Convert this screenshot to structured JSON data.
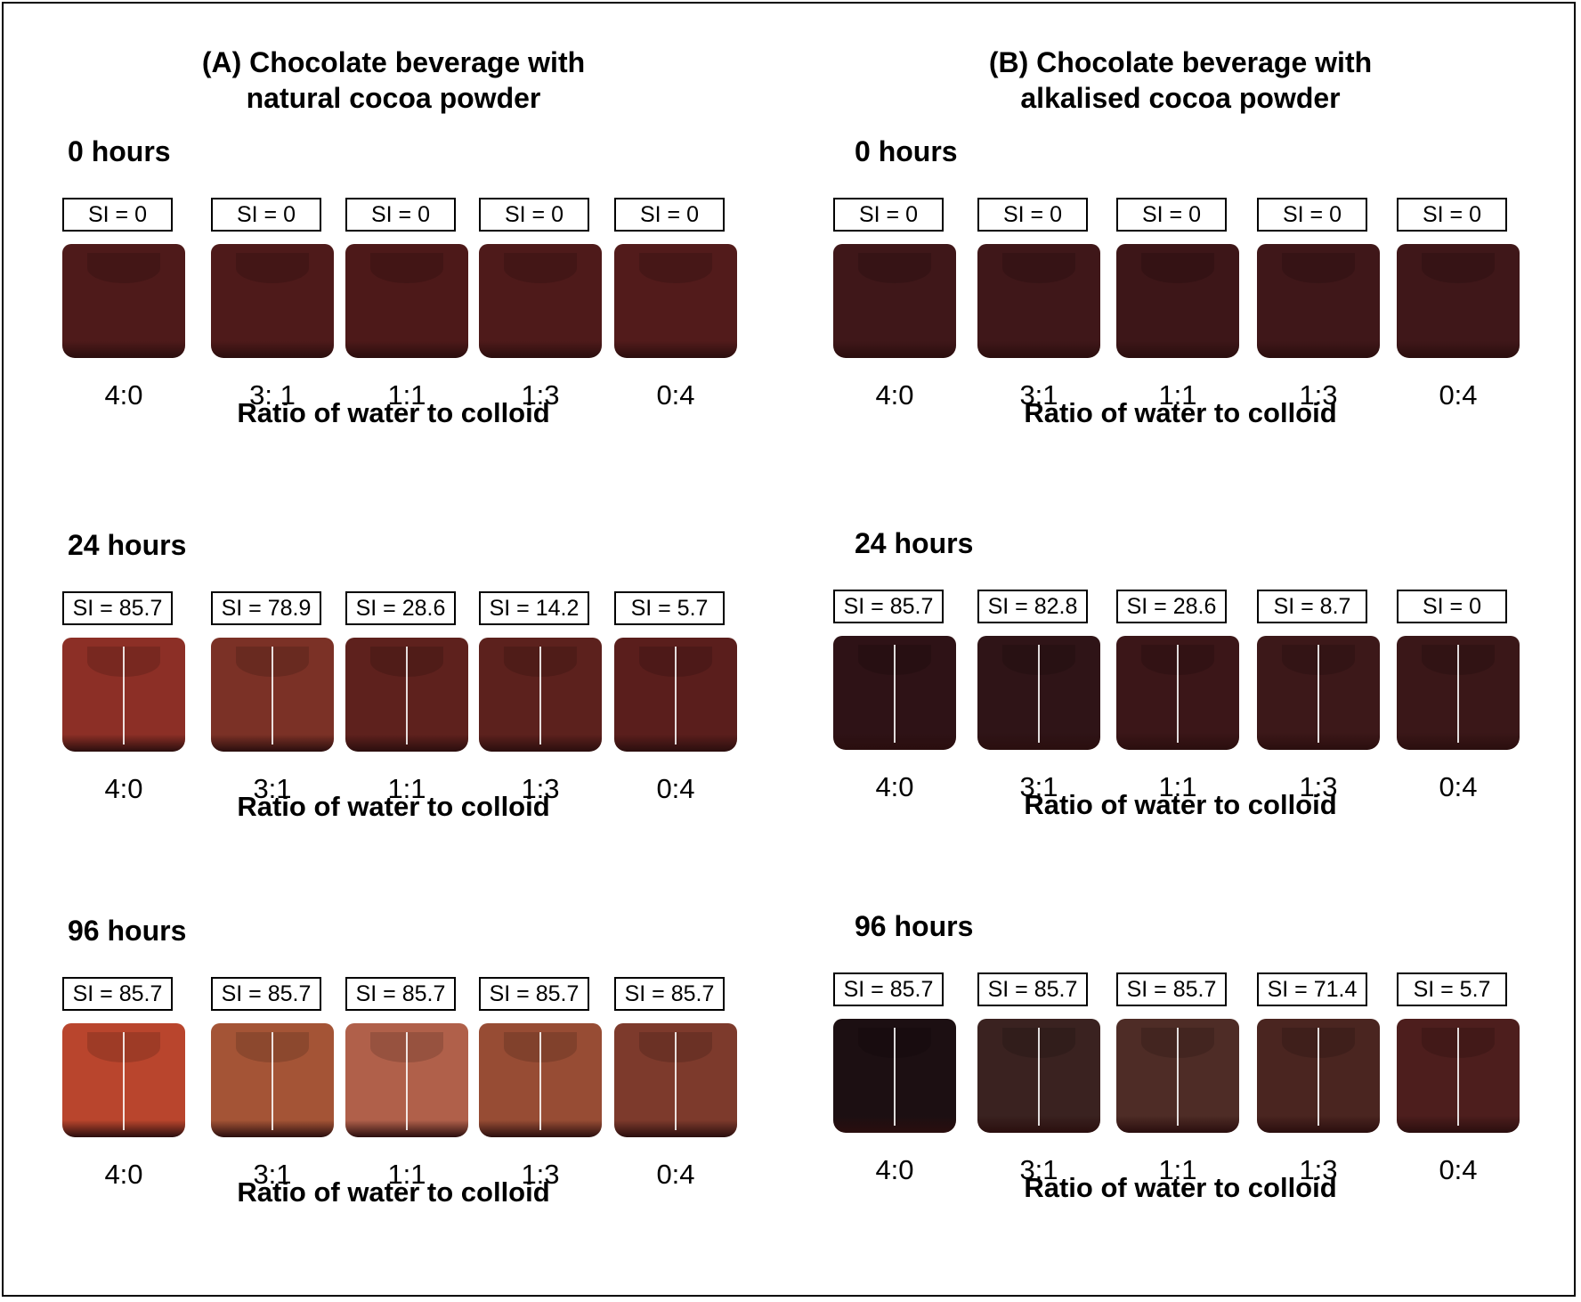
{
  "panels": [
    {
      "title_line1": "(A) Chocolate beverage with",
      "title_line2": "natural cocoa powder",
      "times": [
        {
          "label": "0 hours",
          "axis_label": "Ratio of water to colloid",
          "samples": [
            {
              "si": "SI = 0",
              "ratio": "4:0",
              "color": "#4e1a1a"
            },
            {
              "si": "SI = 0",
              "ratio": "3: 1",
              "color": "#4e1a1a"
            },
            {
              "si": "SI = 0",
              "ratio": "1:1",
              "color": "#4d1919"
            },
            {
              "si": "SI = 0",
              "ratio": "1:3",
              "color": "#4e1a1a"
            },
            {
              "si": "SI = 0",
              "ratio": "0:4",
              "color": "#521b1b"
            }
          ]
        },
        {
          "label": "24 hours",
          "axis_label": "Ratio of water to colloid",
          "samples": [
            {
              "si": "SI = 85.7",
              "ratio": "4:0",
              "color": "#8c2f26"
            },
            {
              "si": "SI = 78.9",
              "ratio": "3:1",
              "color": "#7b3126"
            },
            {
              "si": "SI = 28.6",
              "ratio": "1:1",
              "color": "#5e211d"
            },
            {
              "si": "SI = 14.2",
              "ratio": "1:3",
              "color": "#5c211d"
            },
            {
              "si": "SI = 5.7",
              "ratio": "0:4",
              "color": "#5a1e1c"
            }
          ]
        },
        {
          "label": "96 hours",
          "axis_label": "Ratio of water to colloid",
          "samples": [
            {
              "si": "SI = 85.7",
              "ratio": "4:0",
              "color": "#b9452d"
            },
            {
              "si": "SI = 85.7",
              "ratio": "3:1",
              "color": "#a45436"
            },
            {
              "si": "SI = 85.7",
              "ratio": "1:1",
              "color": "#b0604a"
            },
            {
              "si": "SI = 85.7",
              "ratio": "1:3",
              "color": "#974c34"
            },
            {
              "si": "SI = 85.7",
              "ratio": "0:4",
              "color": "#7d3a2c"
            }
          ]
        }
      ]
    },
    {
      "title_line1": "(B) Chocolate beverage with",
      "title_line2": "alkalised cocoa powder",
      "times": [
        {
          "label": "0 hours",
          "axis_label": "Ratio of water to colloid",
          "samples": [
            {
              "si": "SI = 0",
              "ratio": "4:0",
              "color": "#3f1719"
            },
            {
              "si": "SI = 0",
              "ratio": "3:1",
              "color": "#3f1719"
            },
            {
              "si": "SI = 0",
              "ratio": "1:1",
              "color": "#3d1618"
            },
            {
              "si": "SI = 0",
              "ratio": "1:3",
              "color": "#3f1719"
            },
            {
              "si": "SI = 0",
              "ratio": "0:4",
              "color": "#3f1719"
            }
          ]
        },
        {
          "label": "24 hours",
          "axis_label": "Ratio of water to colloid",
          "samples": [
            {
              "si": "SI = 85.7",
              "ratio": "4:0",
              "color": "#2e1216"
            },
            {
              "si": "SI = 82.8",
              "ratio": "3:1",
              "color": "#2f1417"
            },
            {
              "si": "SI = 28.6",
              "ratio": "1:1",
              "color": "#3b1618"
            },
            {
              "si": "SI = 8.7",
              "ratio": "1:3",
              "color": "#3c1819"
            },
            {
              "si": "SI = 0",
              "ratio": "0:4",
              "color": "#3a1718"
            }
          ]
        },
        {
          "label": "96 hours",
          "axis_label": "Ratio of water to colloid",
          "samples": [
            {
              "si": "SI = 85.7",
              "ratio": "4:0",
              "color": "#1c0f12"
            },
            {
              "si": "SI = 85.7",
              "ratio": "3:1",
              "color": "#3a2220"
            },
            {
              "si": "SI = 85.7",
              "ratio": "1:1",
              "color": "#4e2c26"
            },
            {
              "si": "SI = 71.4",
              "ratio": "1:3",
              "color": "#4a2520"
            },
            {
              "si": "SI = 5.7",
              "ratio": "0:4",
              "color": "#4d1e1d"
            }
          ]
        }
      ]
    }
  ]
}
